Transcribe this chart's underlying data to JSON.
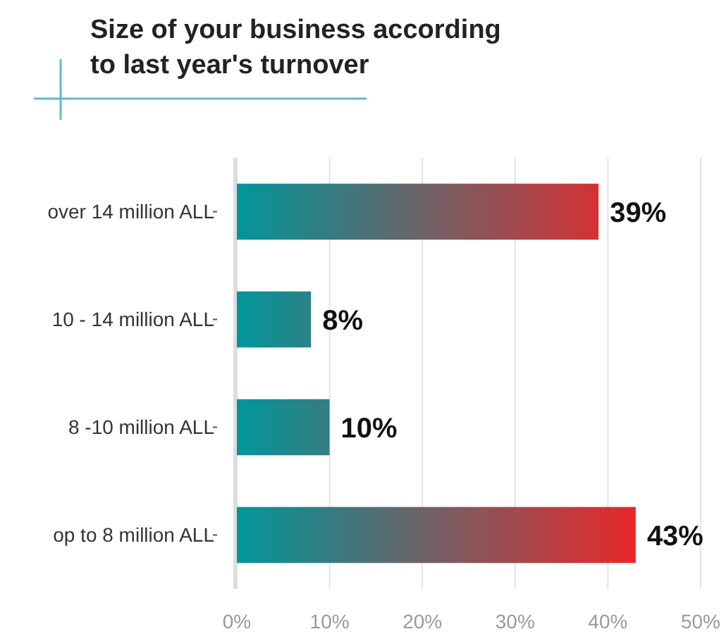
{
  "chart_data": {
    "type": "bar",
    "orientation": "horizontal",
    "title": "Size of your business according\nto last year's turnover",
    "categories": [
      "over 14 million ALL",
      "10 - 14 million ALL",
      "8 -10 million ALL",
      "op to 8 million ALL"
    ],
    "series": [
      {
        "color": "#00969c",
        "values": [
          39,
          8,
          10,
          43
        ]
      }
    ],
    "xlim": [
      0,
      50
    ],
    "xticks": [
      {
        "value": 0,
        "label": "0%"
      },
      {
        "value": 10,
        "label": "10%"
      },
      {
        "value": 20,
        "label": "20%"
      },
      {
        "value": 30,
        "label": "30%"
      },
      {
        "value": 40,
        "label": "40%"
      },
      {
        "value": 50,
        "label": "50%"
      }
    ],
    "value_labels": [
      "39%",
      "8%",
      "10%",
      "43%"
    ],
    "grid": "x"
  }
}
